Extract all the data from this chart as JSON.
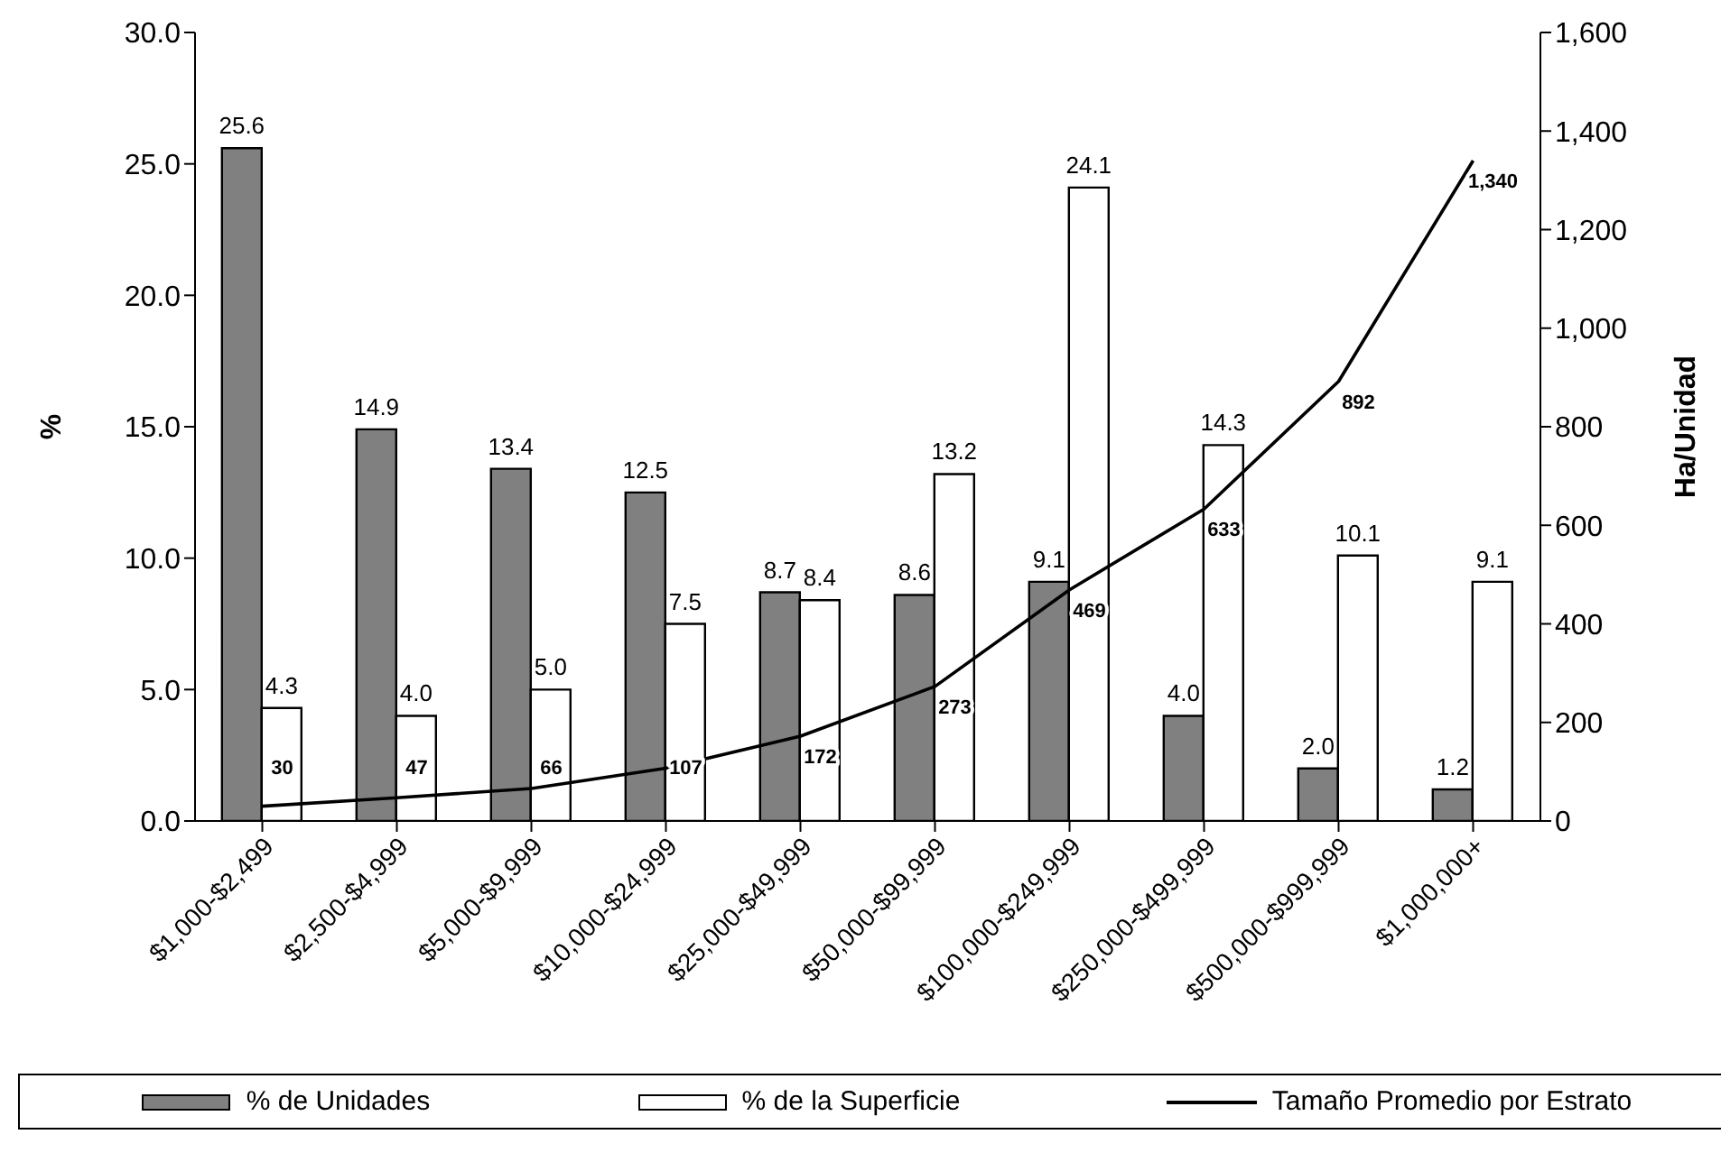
{
  "chart_data": {
    "type": "bar",
    "categories": [
      "$1,000-$2,499",
      "$2,500-$4,999",
      "$5,000-$9,999",
      "$10,000-$24,999",
      "$25,000-$49,999",
      "$50,000-$99,999",
      "$100,000-$249,999",
      "$250,000-$499,999",
      "$500,000-$999,999",
      "$1,000,000+"
    ],
    "series": [
      {
        "name": "% de Unidades",
        "color": "#808080",
        "values": [
          25.6,
          14.9,
          13.4,
          12.5,
          8.7,
          8.6,
          9.1,
          4.0,
          2.0,
          1.2
        ],
        "value_labels": [
          "25.6",
          "14.9",
          "13.4",
          "12.5",
          "8.7",
          "8.6",
          "9.1",
          "4.0",
          "2.0",
          "1.2"
        ]
      },
      {
        "name": "% de la Superficie",
        "color": "#ffffff",
        "values": [
          4.3,
          4.0,
          5.0,
          7.5,
          8.4,
          13.2,
          24.1,
          14.3,
          10.1,
          9.1
        ],
        "value_labels": [
          "4.3",
          "4.0",
          "5.0",
          "7.5",
          "8.4",
          "13.2",
          "24.1",
          "14.3",
          "10.1",
          "9.1"
        ]
      },
      {
        "name": "Tamaño Promedio por Estrato",
        "type": "line",
        "axis": "y2",
        "color": "#000000",
        "values": [
          30,
          47,
          66,
          107,
          172,
          273,
          469,
          633,
          892,
          1340
        ],
        "value_labels": [
          "30",
          "47",
          "66",
          "107",
          "172",
          "273",
          "469",
          "633",
          "892",
          "1,340"
        ]
      }
    ],
    "ylabel": "%",
    "y2label": "Ha/Unidad",
    "ylim": [
      0,
      30
    ],
    "yticks": [
      {
        "value": 0,
        "label": "0.0"
      },
      {
        "value": 5,
        "label": "5.0"
      },
      {
        "value": 10,
        "label": "10.0"
      },
      {
        "value": 15,
        "label": "15.0"
      },
      {
        "value": 20,
        "label": "20.0"
      },
      {
        "value": 25,
        "label": "25.0"
      },
      {
        "value": 30,
        "label": "30.0"
      }
    ],
    "y2lim": [
      0,
      1600
    ],
    "y2ticks": [
      0,
      200,
      400,
      600,
      800,
      {
        "value": 1000,
        "label": "1,000"
      },
      {
        "value": 1200,
        "label": "1,200"
      },
      {
        "value": 1400,
        "label": "1,400"
      },
      {
        "value": 1600,
        "label": "1,600"
      }
    ],
    "grid": false,
    "legend": "bottom",
    "marker": "none",
    "line_style": "solid"
  }
}
